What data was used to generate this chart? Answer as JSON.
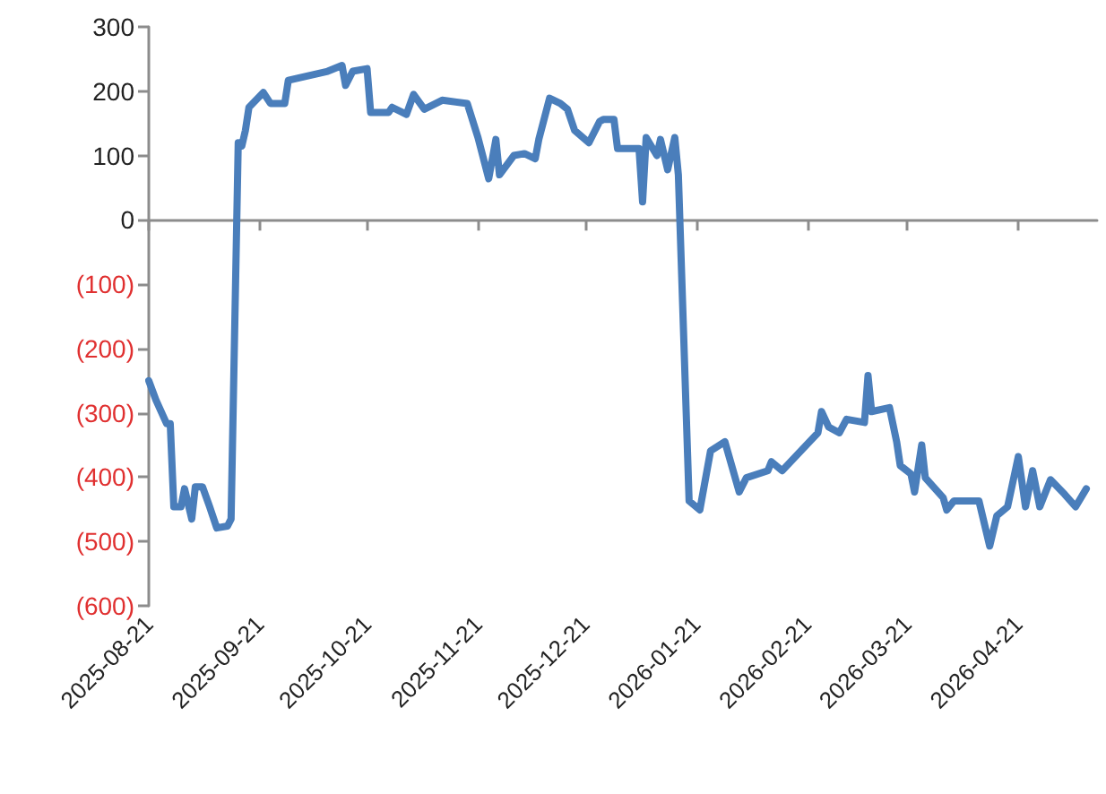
{
  "chart_data": {
    "type": "line",
    "x": [
      "2025-08-21",
      "2025-08-23",
      "2025-08-26",
      "2025-08-27",
      "2025-08-28",
      "2025-08-30",
      "2025-08-31",
      "2025-09-02",
      "2025-09-03",
      "2025-09-05",
      "2025-09-07",
      "2025-09-09",
      "2025-09-12",
      "2025-09-13",
      "2025-09-15",
      "2025-09-16",
      "2025-09-17",
      "2025-09-18",
      "2025-09-22",
      "2025-09-24",
      "2025-09-28",
      "2025-09-29",
      "2025-10-10",
      "2025-10-14",
      "2025-10-15",
      "2025-10-17",
      "2025-10-21",
      "2025-10-22",
      "2025-10-27",
      "2025-10-28",
      "2025-11-01",
      "2025-11-03",
      "2025-11-06",
      "2025-11-11",
      "2025-11-18",
      "2025-11-21",
      "2025-11-24",
      "2025-11-26",
      "2025-11-27",
      "2025-12-01",
      "2025-12-04",
      "2025-12-07",
      "2025-12-08",
      "2025-12-11",
      "2025-12-14",
      "2025-12-16",
      "2025-12-18",
      "2025-12-22",
      "2025-12-25",
      "2025-12-26",
      "2025-12-29",
      "2025-12-30",
      "2026-01-05",
      "2026-01-06",
      "2026-01-07",
      "2026-01-10",
      "2026-01-11",
      "2026-01-13",
      "2026-01-15",
      "2026-01-16",
      "2026-01-19",
      "2026-01-22",
      "2026-01-25",
      "2026-01-29",
      "2026-02-02",
      "2026-02-04",
      "2026-02-10",
      "2026-02-11",
      "2026-02-14",
      "2026-02-24",
      "2026-02-25",
      "2026-02-27",
      "2026-03-02",
      "2026-03-04",
      "2026-03-09",
      "2026-03-10",
      "2026-03-11",
      "2026-03-16",
      "2026-03-18",
      "2026-03-19",
      "2026-03-22",
      "2026-03-23",
      "2026-03-25",
      "2026-03-26",
      "2026-03-31",
      "2026-04-01",
      "2026-04-03",
      "2026-04-10",
      "2026-04-13",
      "2026-04-15",
      "2026-04-18",
      "2026-04-21",
      "2026-04-23",
      "2026-04-25",
      "2026-04-27",
      "2026-04-30",
      "2026-05-04",
      "2026-05-07",
      "2026-05-10"
    ],
    "series": [
      {
        "color": "#4a7ebb",
        "values": [
          -250,
          -280,
          -317,
          -317,
          -446,
          -446,
          -418,
          -465,
          -415,
          -415,
          -446,
          -479,
          -476,
          -465,
          120,
          115,
          139,
          175,
          198,
          181,
          181,
          217,
          231,
          240,
          209,
          231,
          235,
          167,
          167,
          175,
          164,
          195,
          172,
          186,
          181,
          128,
          64,
          125,
          70,
          100,
          103,
          95,
          125,
          189,
          181,
          172,
          139,
          120,
          153,
          156,
          156,
          111,
          111,
          28,
          128,
          100,
          125,
          78,
          128,
          70,
          -437,
          -451,
          -359,
          -345,
          -423,
          -401,
          -390,
          -376,
          -390,
          -331,
          -298,
          -322,
          -331,
          -310,
          -315,
          -242,
          -298,
          -292,
          -345,
          -382,
          -395,
          -423,
          -350,
          -401,
          -432,
          -451,
          -437,
          -437,
          -507,
          -460,
          -446,
          -368,
          -446,
          -390,
          -446,
          -404,
          -427,
          -446,
          -418
        ]
      }
    ],
    "xlim": [
      "2025-08-21",
      "2026-05-13"
    ],
    "xticks": [
      "2025-08-21",
      "2025-09-21",
      "2025-10-21",
      "2025-11-21",
      "2025-12-21",
      "2026-01-21",
      "2026-02-21",
      "2026-03-21",
      "2026-04-21"
    ],
    "ylim": [
      -600,
      300
    ],
    "yticks": [
      {
        "value": -600,
        "label": "(600)"
      },
      {
        "value": -500,
        "label": "(500)"
      },
      {
        "value": -400,
        "label": "(400)"
      },
      {
        "value": -300,
        "label": "(300)"
      },
      {
        "value": -200,
        "label": "(200)"
      },
      {
        "value": -100,
        "label": "(100)"
      },
      0,
      100,
      200,
      300
    ],
    "marker": "none",
    "line_style": "solid"
  }
}
